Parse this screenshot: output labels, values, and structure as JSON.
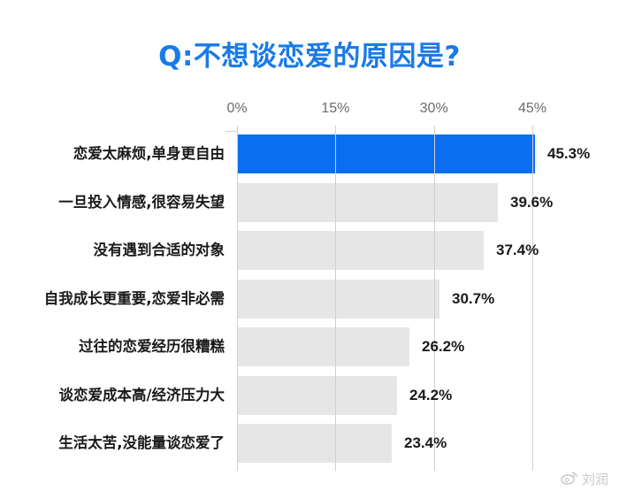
{
  "title": "Q:不想谈恋爱的原因是?",
  "colors": {
    "title": "#1a7ae8",
    "highlight_bar": "#0a6ef0",
    "default_bar": "#e6e6e6",
    "gridline": "#cfcfcf",
    "axis_text": "#6b6b6b",
    "label_text": "#1a1a1a"
  },
  "axis": {
    "ticks": [
      "0%",
      "15%",
      "30%",
      "45%"
    ]
  },
  "watermark": {
    "icon": "weibo-icon",
    "text": "刘润"
  },
  "chart_data": {
    "type": "bar",
    "orientation": "horizontal",
    "title": "Q:不想谈恋爱的原因是?",
    "xlabel": "",
    "ylabel": "",
    "categories": [
      "恋爱太麻烦,单身更自由",
      "一旦投入情感,很容易失望",
      "没有遇到合适的对象",
      "自我成长更重要,恋爱非必需",
      "过往的恋爱经历很糟糕",
      "谈恋爱成本高/经济压力大",
      "生活太苦,没能量谈恋爱了"
    ],
    "values": [
      45.3,
      39.6,
      37.4,
      30.7,
      26.2,
      24.2,
      23.4
    ],
    "value_labels": [
      "45.3%",
      "39.6%",
      "37.4%",
      "30.7%",
      "26.2%",
      "24.2%",
      "23.4%"
    ],
    "xlim": [
      0,
      45
    ],
    "xticks": [
      0,
      15,
      30,
      45
    ],
    "xtick_labels": [
      "0%",
      "15%",
      "30%",
      "45%"
    ],
    "axis_position": "top",
    "grid": true,
    "legend": null,
    "highlight_index": 0
  }
}
